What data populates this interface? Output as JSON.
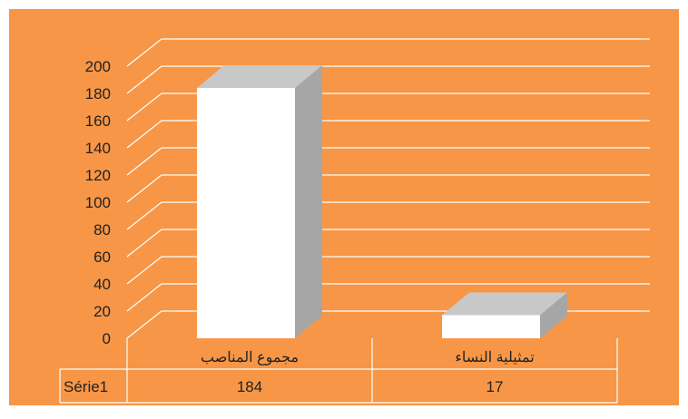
{
  "chart_data": {
    "type": "bar",
    "style": "3d-column",
    "categories": [
      "مجموع المناصب",
      "تمثيلية النساء"
    ],
    "series": [
      {
        "name": "Série1",
        "values": [
          184,
          17
        ]
      }
    ],
    "table": {
      "row_label": "Série1",
      "values": [
        "184",
        "17"
      ]
    },
    "yticks": [
      "0",
      "20",
      "40",
      "60",
      "80",
      "100",
      "120",
      "140",
      "160",
      "180",
      "200"
    ],
    "ylim": [
      0,
      200
    ],
    "grid": true,
    "legend": "none",
    "colors": {
      "background": "#F79646",
      "bar_front": "#FFFFFF",
      "bar_top": "#C8C8C8",
      "bar_side": "#A6A6A6",
      "gridline": "#FFFFFF",
      "table_line": "#FFFFFF"
    }
  }
}
